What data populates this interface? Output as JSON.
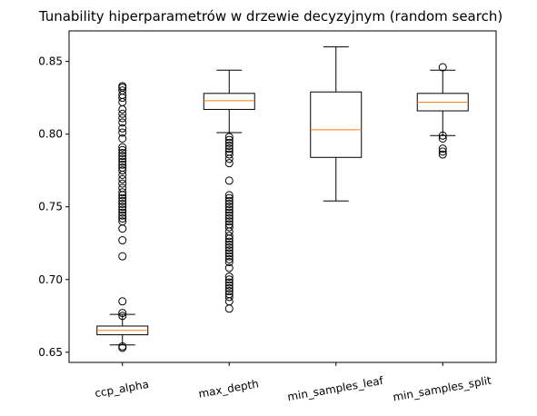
{
  "chart_data": {
    "type": "box",
    "title": "Tunability hiperparametrów w drzewie decyzyjnym (random search)",
    "xlabel": "",
    "ylabel": "",
    "ylim": [
      0.643,
      0.871
    ],
    "yticks": [
      0.65,
      0.7,
      0.75,
      0.8,
      0.85
    ],
    "ytick_labels": [
      "0.65",
      "0.70",
      "0.75",
      "0.80",
      "0.85"
    ],
    "categories": [
      "ccp_alpha",
      "max_depth",
      "min_samples_leaf",
      "min_samples_split"
    ],
    "grid": false,
    "colors": {
      "box": "#000000",
      "median": "#ff7f0e",
      "outlier": "#000000"
    },
    "boxes": [
      {
        "label": "ccp_alpha",
        "whisker_low": 0.655,
        "q1": 0.662,
        "median": 0.665,
        "q3": 0.668,
        "whisker_high": 0.676,
        "outliers": [
          0.653,
          0.654,
          0.675,
          0.677,
          0.685,
          0.716,
          0.727,
          0.735,
          0.74,
          0.742,
          0.744,
          0.746,
          0.748,
          0.75,
          0.752,
          0.754,
          0.756,
          0.758,
          0.76,
          0.763,
          0.766,
          0.769,
          0.772,
          0.775,
          0.777,
          0.779,
          0.781,
          0.783,
          0.785,
          0.787,
          0.789,
          0.791,
          0.797,
          0.801,
          0.804,
          0.808,
          0.811,
          0.814,
          0.817,
          0.822,
          0.825,
          0.827,
          0.83,
          0.832,
          0.833
        ]
      },
      {
        "label": "max_depth",
        "whisker_low": 0.801,
        "q1": 0.817,
        "median": 0.823,
        "q3": 0.828,
        "whisker_high": 0.844,
        "outliers": [
          0.68,
          0.685,
          0.688,
          0.69,
          0.692,
          0.694,
          0.696,
          0.698,
          0.7,
          0.702,
          0.708,
          0.712,
          0.714,
          0.716,
          0.718,
          0.72,
          0.722,
          0.724,
          0.726,
          0.728,
          0.73,
          0.733,
          0.736,
          0.738,
          0.74,
          0.742,
          0.744,
          0.746,
          0.748,
          0.75,
          0.752,
          0.754,
          0.756,
          0.758,
          0.768,
          0.78,
          0.783,
          0.786,
          0.788,
          0.79,
          0.792,
          0.794,
          0.796,
          0.798
        ]
      },
      {
        "label": "min_samples_leaf",
        "whisker_low": 0.754,
        "q1": 0.784,
        "median": 0.803,
        "q3": 0.829,
        "whisker_high": 0.86,
        "outliers": []
      },
      {
        "label": "min_samples_split",
        "whisker_low": 0.799,
        "q1": 0.816,
        "median": 0.822,
        "q3": 0.828,
        "whisker_high": 0.844,
        "outliers": [
          0.786,
          0.788,
          0.79,
          0.797,
          0.799,
          0.846
        ]
      }
    ]
  }
}
